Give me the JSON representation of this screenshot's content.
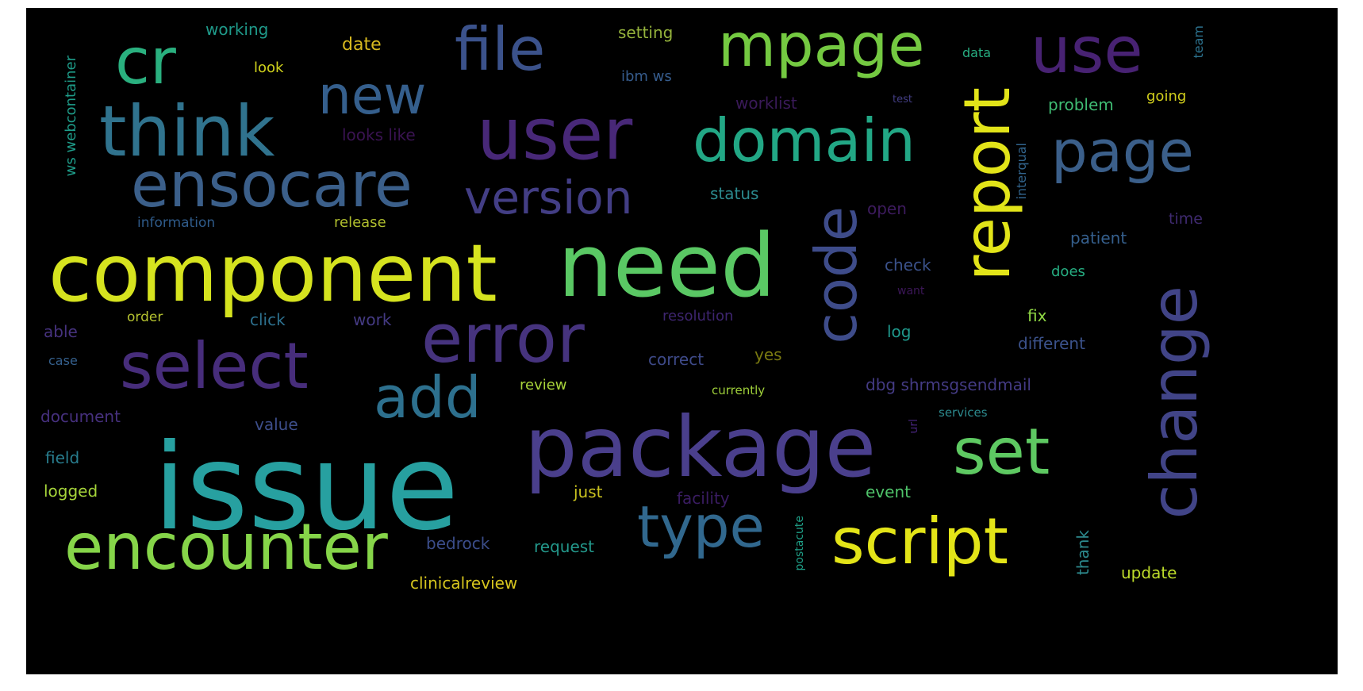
{
  "background_color": "#000000",
  "words": [
    {
      "id": "issue",
      "text": "issue",
      "color": "#27a0a0"
    },
    {
      "id": "component",
      "text": "component",
      "color": "#d6e31f"
    },
    {
      "id": "need",
      "text": "need",
      "color": "#5ac864"
    },
    {
      "id": "package",
      "text": "package",
      "color": "#4a3f8c"
    },
    {
      "id": "user",
      "text": "user",
      "color": "#482878"
    },
    {
      "id": "error",
      "text": "error",
      "color": "#46337e"
    },
    {
      "id": "think",
      "text": "think",
      "color": "#30738e"
    },
    {
      "id": "ensocare",
      "text": "ensocare",
      "color": "#3b5f8a"
    },
    {
      "id": "encounter",
      "text": "encounter",
      "color": "#86d549"
    },
    {
      "id": "select",
      "text": "select",
      "color": "#472d7b"
    },
    {
      "id": "script",
      "text": "script",
      "color": "#e3e418"
    },
    {
      "id": "domain",
      "text": "domain",
      "color": "#22a785"
    },
    {
      "id": "code",
      "text": "code",
      "color": "#3e4c8a"
    },
    {
      "id": "report",
      "text": "report",
      "color": "#e2e419"
    },
    {
      "id": "change",
      "text": "change",
      "color": "#414487"
    },
    {
      "id": "file",
      "text": "file",
      "color": "#3b528b"
    },
    {
      "id": "mpage",
      "text": "mpage",
      "color": "#74c941"
    },
    {
      "id": "use",
      "text": "use",
      "color": "#482273"
    },
    {
      "id": "cr",
      "text": "cr",
      "color": "#2ab07f"
    },
    {
      "id": "new",
      "text": "new",
      "color": "#355f8d"
    },
    {
      "id": "page",
      "text": "page",
      "color": "#3b5f8a"
    },
    {
      "id": "set",
      "text": "set",
      "color": "#5ec962"
    },
    {
      "id": "type",
      "text": "type",
      "color": "#31688e"
    },
    {
      "id": "add",
      "text": "add",
      "color": "#2d708e"
    },
    {
      "id": "version",
      "text": "version",
      "color": "#433e85"
    },
    {
      "id": "working",
      "text": "working",
      "color": "#1f9a8a"
    },
    {
      "id": "date",
      "text": "date",
      "color": "#d8b91f"
    },
    {
      "id": "look",
      "text": "look",
      "color": "#d0d21c"
    },
    {
      "id": "setting",
      "text": "setting",
      "color": "#95b33c"
    },
    {
      "id": "ibm-ws",
      "text": "ibm ws",
      "color": "#365c8d"
    },
    {
      "id": "data",
      "text": "data",
      "color": "#27ad81"
    },
    {
      "id": "team",
      "text": "team",
      "color": "#2c728e"
    },
    {
      "id": "worklist",
      "text": "worklist",
      "color": "#3a1a59"
    },
    {
      "id": "test",
      "text": "test",
      "color": "#433e85"
    },
    {
      "id": "problem",
      "text": "problem",
      "color": "#3fbc73"
    },
    {
      "id": "going",
      "text": "going",
      "color": "#d2cf1c"
    },
    {
      "id": "looks-like",
      "text": "looks like",
      "color": "#3a1352"
    },
    {
      "id": "ws-webcontainer",
      "text": "ws webcontainer",
      "color": "#1e9c89"
    },
    {
      "id": "status",
      "text": "status",
      "color": "#2c8a8e"
    },
    {
      "id": "interqual",
      "text": "interqual",
      "color": "#32658e"
    },
    {
      "id": "time",
      "text": "time",
      "color": "#3f2a70"
    },
    {
      "id": "information",
      "text": "information",
      "color": "#2f5b8a"
    },
    {
      "id": "release",
      "text": "release",
      "color": "#b0be2e"
    },
    {
      "id": "open",
      "text": "open",
      "color": "#3d1b5e"
    },
    {
      "id": "patient",
      "text": "patient",
      "color": "#355f8d"
    },
    {
      "id": "check",
      "text": "check",
      "color": "#3b528b"
    },
    {
      "id": "does",
      "text": "does",
      "color": "#26ad81"
    },
    {
      "id": "want",
      "text": "want",
      "color": "#3b1657"
    },
    {
      "id": "able",
      "text": "able",
      "color": "#46327e"
    },
    {
      "id": "order",
      "text": "order",
      "color": "#b5c230"
    },
    {
      "id": "click",
      "text": "click",
      "color": "#2d708e"
    },
    {
      "id": "work",
      "text": "work",
      "color": "#443a83"
    },
    {
      "id": "resolution",
      "text": "resolution",
      "color": "#3e2570"
    },
    {
      "id": "log",
      "text": "log",
      "color": "#1f988b"
    },
    {
      "id": "fix",
      "text": "fix",
      "color": "#8fd744"
    },
    {
      "id": "different",
      "text": "different",
      "color": "#3b528b"
    },
    {
      "id": "case",
      "text": "case",
      "color": "#35608d"
    },
    {
      "id": "correct",
      "text": "correct",
      "color": "#3e4a89"
    },
    {
      "id": "yes",
      "text": "yes",
      "color": "#7a7a10"
    },
    {
      "id": "review",
      "text": "review",
      "color": "#a8d43a"
    },
    {
      "id": "currently",
      "text": "currently",
      "color": "#9fd03a"
    },
    {
      "id": "dbg-shrmsgsendmail",
      "text": "dbg shrmsgsendmail",
      "color": "#443b84"
    },
    {
      "id": "document",
      "text": "document",
      "color": "#46307e"
    },
    {
      "id": "value",
      "text": "value",
      "color": "#3d4e8a"
    },
    {
      "id": "url",
      "text": "url",
      "color": "#46247a"
    },
    {
      "id": "services",
      "text": "services",
      "color": "#2c8a8e"
    },
    {
      "id": "field",
      "text": "field",
      "color": "#287d8e"
    },
    {
      "id": "logged",
      "text": "logged",
      "color": "#a5d43a"
    },
    {
      "id": "just",
      "text": "just",
      "color": "#c9c21f"
    },
    {
      "id": "facility",
      "text": "facility",
      "color": "#3a1c62"
    },
    {
      "id": "event",
      "text": "event",
      "color": "#4fc36a"
    },
    {
      "id": "postacute",
      "text": "postacute",
      "color": "#1fa088"
    },
    {
      "id": "thank",
      "text": "thank",
      "color": "#2d8a8e"
    },
    {
      "id": "bedrock",
      "text": "bedrock",
      "color": "#3b4d8a"
    },
    {
      "id": "request",
      "text": "request",
      "color": "#23988b"
    },
    {
      "id": "clinicalreview",
      "text": "clinicalreview",
      "color": "#d6c51e"
    },
    {
      "id": "update",
      "text": "update",
      "color": "#bddc2a"
    }
  ]
}
